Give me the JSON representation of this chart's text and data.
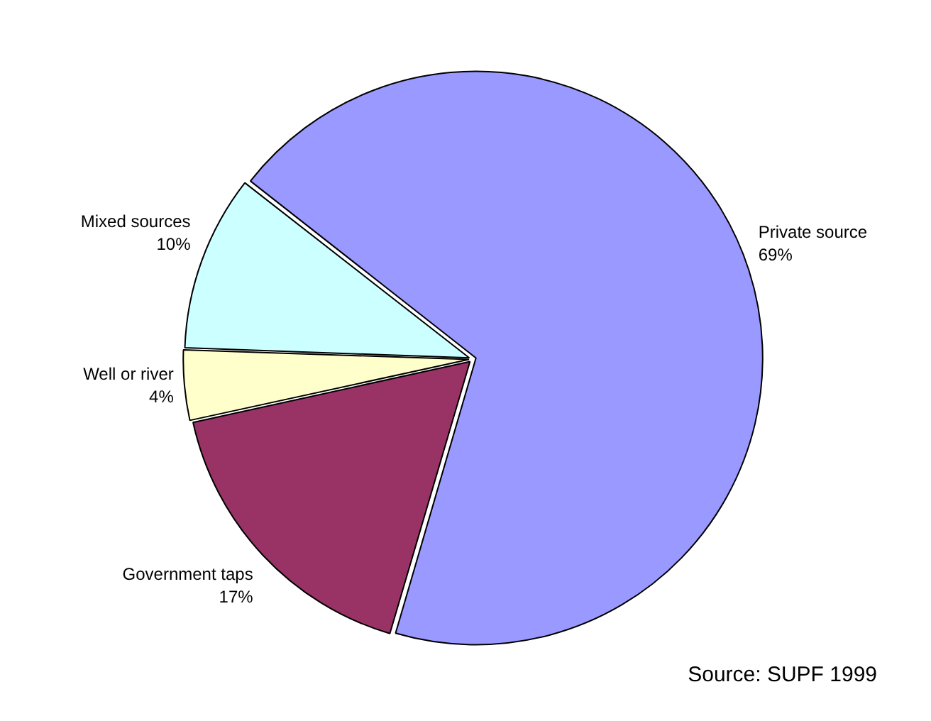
{
  "chart_data": {
    "type": "pie",
    "categories": [
      "Private source",
      "Government taps",
      "Well or river",
      "Mixed sources"
    ],
    "values": [
      69,
      17,
      4,
      10
    ],
    "colors": [
      "#9999ff",
      "#993366",
      "#ffffcc",
      "#ccffff"
    ],
    "value_labels": [
      "69%",
      "17%",
      "4%",
      "10%"
    ],
    "annotations": [
      "Source: SUPF 1999"
    ],
    "legend": false
  }
}
